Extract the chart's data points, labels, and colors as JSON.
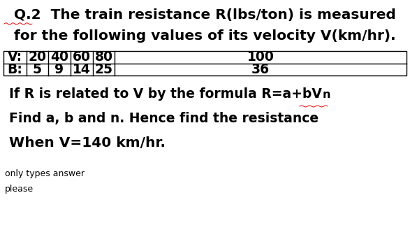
{
  "title_line1": "Q.2  The train resistance R(lbs/ton) is measured",
  "title_line2": "for the following values of its velocity V(km/hr).",
  "table_row1_label": "V:",
  "table_row2_label": "B:",
  "table_row1_values": [
    "20",
    "40",
    "60",
    "80",
    "100"
  ],
  "table_row2_values": [
    "5",
    "9",
    "14",
    "25",
    "36"
  ],
  "line3_main": "If R is related to V by the formula R=a+bV",
  "line3_super": "n",
  "line4": "Find a, b and n. Hence find the resistance",
  "line5": "When V=140 km/hr.",
  "line6": "only types answer",
  "line7": "please",
  "bg_color": "#ffffff",
  "text_color": "#000000",
  "table_border_color": "#000000",
  "title_fontsize": 14.5,
  "body_fontsize": 13.5,
  "line5_fontsize": 14.5,
  "small_fontsize": 9.0,
  "fig_width": 5.87,
  "fig_height": 3.59,
  "dpi": 100
}
